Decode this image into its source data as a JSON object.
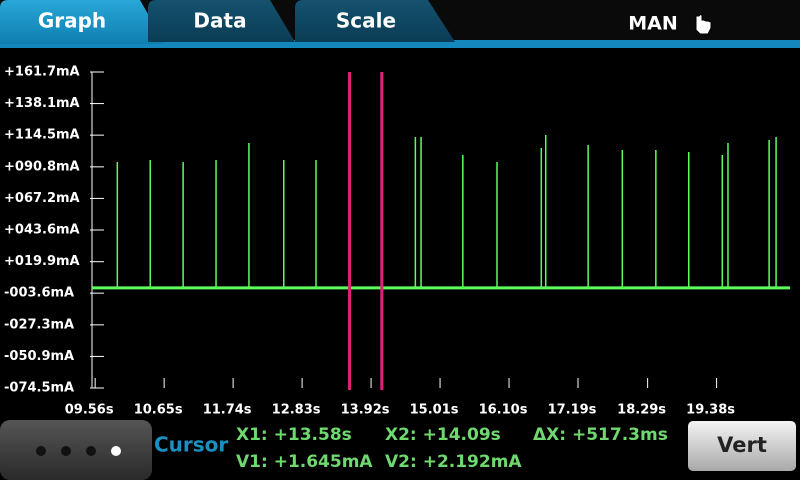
{
  "tabs": [
    "Graph",
    "Data",
    "Scale"
  ],
  "mode": "MAN",
  "chart_data": {
    "type": "spikes",
    "color": "#5cff5c",
    "baseline": 0.3,
    "ylim": [
      -74.5,
      161.7
    ],
    "yticks": [
      {
        "value": 161.7,
        "label": "+161.7mA"
      },
      {
        "value": 138.1,
        "label": "+138.1mA"
      },
      {
        "value": 114.5,
        "label": "+114.5mA"
      },
      {
        "value": 90.8,
        "label": "+090.8mA"
      },
      {
        "value": 67.2,
        "label": "+067.2mA"
      },
      {
        "value": 43.6,
        "label": "+043.6mA"
      },
      {
        "value": 19.9,
        "label": "+019.9mA"
      },
      {
        "value": -3.6,
        "label": "-003.6mA"
      },
      {
        "value": -27.3,
        "label": "-027.3mA"
      },
      {
        "value": -50.9,
        "label": "-050.9mA"
      },
      {
        "value": -74.5,
        "label": "-074.5mA"
      }
    ],
    "xlim": [
      9.51,
      20.54
    ],
    "xticks": [
      {
        "value": 9.56,
        "label": "09.56s"
      },
      {
        "value": 10.65,
        "label": "10.65s"
      },
      {
        "value": 11.74,
        "label": "11.74s"
      },
      {
        "value": 12.83,
        "label": "12.83s"
      },
      {
        "value": 13.92,
        "label": "13.92s"
      },
      {
        "value": 15.01,
        "label": "15.01s"
      },
      {
        "value": 16.1,
        "label": "16.10s"
      },
      {
        "value": 17.19,
        "label": "17.19s"
      },
      {
        "value": 18.29,
        "label": "18.29s"
      },
      {
        "value": 19.38,
        "label": "19.38s"
      }
    ],
    "x": [
      9.91,
      10.43,
      10.95,
      11.47,
      11.99,
      12.54,
      13.05,
      14.62,
      14.71,
      15.37,
      15.91,
      16.61,
      16.68,
      17.35,
      17.89,
      18.42,
      18.94,
      19.47,
      19.56,
      20.21,
      20.32
    ],
    "values": [
      94.4,
      95.9,
      94.4,
      95.9,
      108.6,
      95.9,
      95.9,
      113.1,
      113.1,
      99.7,
      94.4,
      104.9,
      114.6,
      107.1,
      103.4,
      103.4,
      101.9,
      99.7,
      108.6,
      110.9,
      113.1
    ],
    "cursor_color": "#e0207a",
    "cursors": [
      {
        "value": 13.58,
        "label": "X1: +13.58s"
      },
      {
        "value": 14.09,
        "label": "X2: +14.09s"
      }
    ]
  },
  "readout": {
    "title": "Cursor",
    "v1": "V1: +1.645mA",
    "v2": "V2: +2.192mA",
    "dx": "ΔX: +517.3ms"
  },
  "button": "Vert"
}
